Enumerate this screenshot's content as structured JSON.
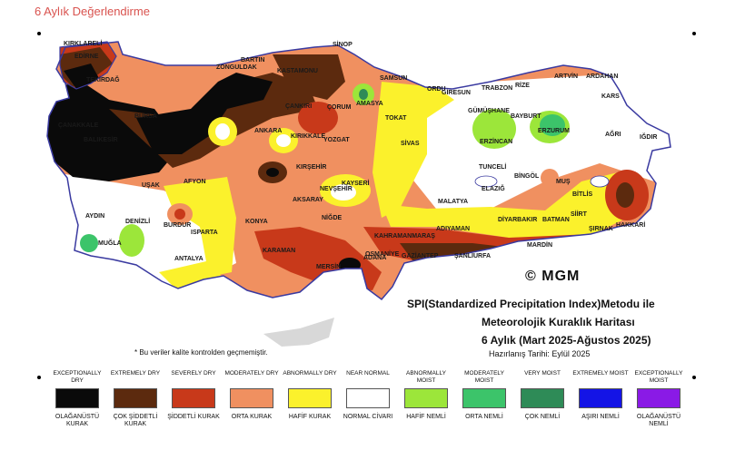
{
  "header": {
    "title": "6 Aylık Değerlendirme"
  },
  "map": {
    "logo": "© MGM",
    "caption": {
      "line1": "SPI(Standardized Precipitation Index)Metodu ile",
      "line2": "Meteorolojik Kuraklık Haritası",
      "line3": "6 Aylık (Mart 2025-Ağustos 2025)",
      "line4": "Hazırlanış Tarihi: Eylül 2025"
    },
    "footnote": "* Bu veriler kalite kontrolden geçmemiştir.",
    "cities": [
      "KIRKLARELİ",
      "EDİRNE",
      "TEKİRDAĞ",
      "ZONGULDAK",
      "BARTIN",
      "KASTAMONU",
      "SİNOP",
      "SAMSUN",
      "ORDU",
      "GİRESUN",
      "TRABZON",
      "RİZE",
      "ARTVİN",
      "ARDAHAN",
      "KARS",
      "IĞDIR",
      "AĞRI",
      "ERZURUM",
      "BAYBURT",
      "GÜMÜŞHANE",
      "ERZİNCAN",
      "AMASYA",
      "TOKAT",
      "SİVAS",
      "ÇORUM",
      "ÇANKIRI",
      "ANKARA",
      "KIRIKKALE",
      "YOZGAT",
      "KIRŞEHİR",
      "NEVŞEHİR",
      "KAYSERİ",
      "AKSARAY",
      "NİĞDE",
      "ÇANAKKALE",
      "BALIKESİR",
      "BURSA",
      "UŞAK",
      "AFYON",
      "AYDIN",
      "DENİZLİ",
      "MUĞLA",
      "BURDUR",
      "ISPARTA",
      "ANTALYA",
      "KONYA",
      "KARAMAN",
      "MERSİN",
      "ADANA",
      "OSMANİYE",
      "GAZİANTEP",
      "KAHRAMANMARAŞ",
      "ADIYAMAN",
      "ŞANLIURFA",
      "MARDİN",
      "DİYARBAKIR",
      "BATMAN",
      "SİİRT",
      "ŞIRNAK",
      "HAKKARİ",
      "BİTLİS",
      "MUŞ",
      "BİNGÖL",
      "TUNCELİ",
      "ELAZIĞ",
      "MALATYA"
    ],
    "legend": [
      {
        "en": "EXCEPTIONALLY DRY",
        "tr": "OLAĞANÜSTÜ KURAK",
        "color": "#0a0a0a"
      },
      {
        "en": "EXTREMELY DRY",
        "tr": "ÇOK ŞİDDETLİ KURAK",
        "color": "#5c2a0e"
      },
      {
        "en": "SEVERELY DRY",
        "tr": "ŞİDDETLİ KURAK",
        "color": "#c8391a"
      },
      {
        "en": "MODERATELY DRY",
        "tr": "ORTA KURAK",
        "color": "#f09060"
      },
      {
        "en": "ABNORMALLY DRY",
        "tr": "HAFİF KURAK",
        "color": "#fbf12c"
      },
      {
        "en": "NEAR NORMAL",
        "tr": "NORMAL CİVARI",
        "color": "#ffffff"
      },
      {
        "en": "ABNORMALLY MOIST",
        "tr": "HAFİF NEMLİ",
        "color": "#9ce63a"
      },
      {
        "en": "MODERATELY MOIST",
        "tr": "ORTA NEMLİ",
        "color": "#3cc46a"
      },
      {
        "en": "VERY MOIST",
        "tr": "ÇOK NEMLİ",
        "color": "#2e8b57"
      },
      {
        "en": "EXTREMELY MOIST",
        "tr": "AŞIRI NEMLİ",
        "color": "#1414e6"
      },
      {
        "en": "EXCEPTIONALLY MOIST",
        "tr": "OLAĞANÜSTÜ NEMLİ",
        "color": "#8a1ae6"
      }
    ]
  }
}
